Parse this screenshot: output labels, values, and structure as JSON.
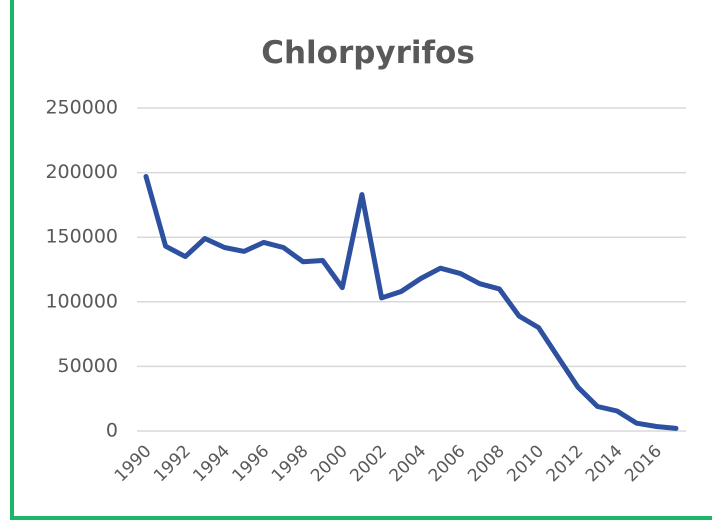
{
  "chart_data": {
    "type": "line",
    "title": "Chlorpyrifos",
    "x": [
      1990,
      1991,
      1992,
      1993,
      1994,
      1995,
      1996,
      1997,
      1998,
      1999,
      2000,
      2001,
      2002,
      2003,
      2004,
      2005,
      2006,
      2007,
      2008,
      2009,
      2010,
      2011,
      2012,
      2013,
      2014,
      2015,
      2016,
      2017
    ],
    "series": [
      {
        "name": "Chlorpyrifos",
        "color": "#2e50a0",
        "values": [
          197000,
          143000,
          135000,
          149000,
          142000,
          139000,
          146000,
          142000,
          131000,
          132000,
          111000,
          183000,
          103000,
          108000,
          118000,
          126000,
          122000,
          114000,
          110000,
          89000,
          80000,
          57000,
          34000,
          19000,
          15500,
          6000,
          3500,
          2000
        ]
      }
    ],
    "xlim": [
      1990,
      2017
    ],
    "xticks": [
      1990,
      1992,
      1994,
      1996,
      1998,
      2000,
      2002,
      2004,
      2006,
      2008,
      2010,
      2012,
      2014,
      2016
    ],
    "ylim": [
      0,
      250000
    ],
    "yticks": [
      0,
      50000,
      100000,
      150000,
      200000,
      250000
    ],
    "grid": true
  }
}
